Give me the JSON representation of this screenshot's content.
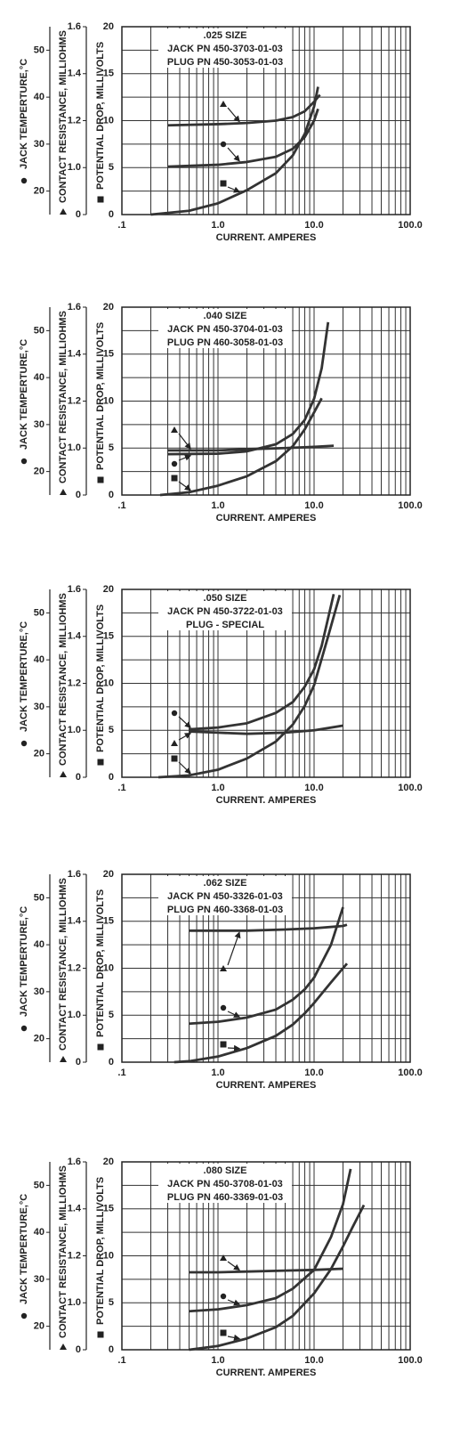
{
  "chart_data": [
    {
      "type": "line",
      "annotation": [
        ".025 SIZE",
        "JACK PN 450-3703-01-03",
        "PLUG PN 450-3053-01-03"
      ],
      "x_label": "CURRENT. AMPERES",
      "y_label": "POTENTIAL DROP, MILLIVOLTS",
      "y2_label": "CONTACT RESISTANCE, MILLIOHMS",
      "y3_label": "JACK TEMPERTURE,°C",
      "xscale": "log",
      "xlim": [
        0.1,
        100
      ],
      "xticks": [
        {
          "value": 0.1,
          "label": ".1"
        },
        {
          "value": 1,
          "label": "1.0"
        },
        {
          "value": 10,
          "label": "10.0"
        },
        {
          "value": 100,
          "label": "100.0"
        }
      ],
      "xminorticks": [
        0.2,
        0.3,
        0.4,
        0.5,
        0.6,
        0.7,
        0.8,
        0.9,
        2,
        3,
        4,
        5,
        6,
        7,
        8,
        9,
        20,
        30,
        40,
        50,
        60,
        70,
        80,
        90
      ],
      "ylim": [
        0,
        20
      ],
      "yticks": [
        0,
        5,
        10,
        15,
        20
      ],
      "yminorticks": [
        2.5,
        7.5,
        12.5,
        17.5
      ],
      "y2lim": [
        0,
        1.6
      ],
      "y2break": [
        0,
        0.8
      ],
      "y2ticks": [
        0,
        {
          "value": 1,
          "label": "1.0"
        },
        1.2,
        1.4,
        1.6
      ],
      "y3lim": [
        15,
        55
      ],
      "y3ticks": [
        20,
        30,
        40,
        50
      ],
      "grid": true,
      "series": [
        {
          "axis": "y2",
          "marker": "triangle",
          "color": "#333333",
          "x": [
            0.3,
            1,
            2,
            4,
            6,
            8,
            10,
            11.5
          ],
          "values": [
            1.18,
            1.185,
            1.19,
            1.2,
            1.215,
            1.24,
            1.28,
            1.31
          ]
        },
        {
          "axis": "y3",
          "marker": "circle",
          "color": "#333333",
          "x": [
            0.3,
            1,
            2,
            4,
            6,
            8,
            10,
            11
          ],
          "values": [
            25.2,
            25.6,
            26.2,
            27.3,
            29,
            31.5,
            35,
            37.5
          ]
        },
        {
          "axis": "y",
          "marker": "square",
          "color": "#333333",
          "x": [
            0.2,
            0.5,
            1,
            2,
            4,
            6,
            8,
            10,
            11
          ],
          "values": [
            0,
            0.4,
            1.2,
            2.6,
            4.4,
            6.3,
            8.6,
            11.5,
            13.6
          ]
        }
      ]
    },
    {
      "type": "line",
      "annotation": [
        ".040 SIZE",
        "JACK PN 450-3704-01-03",
        "PLUG PN 460-3058-01-03"
      ],
      "x_label": "CURRENT. AMPERES",
      "y_label": "POTENTIAL DROP, MILLIVOLTS",
      "y2_label": "CONTACT RESISTANCE, MILLIOHMS",
      "y3_label": "JACK TEMPERTURE,°C",
      "xscale": "log",
      "xlim": [
        0.1,
        100
      ],
      "xticks": [
        {
          "value": 0.1,
          "label": ".1"
        },
        {
          "value": 1,
          "label": "1.0"
        },
        {
          "value": 10,
          "label": "10.0"
        },
        {
          "value": 100,
          "label": "100.0"
        }
      ],
      "xminorticks": [
        0.2,
        0.3,
        0.4,
        0.5,
        0.6,
        0.7,
        0.8,
        0.9,
        2,
        3,
        4,
        5,
        6,
        7,
        8,
        9,
        20,
        30,
        40,
        50,
        60,
        70,
        80,
        90
      ],
      "ylim": [
        0,
        20
      ],
      "yticks": [
        0,
        5,
        10,
        15,
        20
      ],
      "yminorticks": [
        2.5,
        7.5,
        12.5,
        17.5
      ],
      "y2lim": [
        0,
        1.6
      ],
      "y2break": [
        0,
        0.8
      ],
      "y2ticks": [
        0,
        {
          "value": 1,
          "label": "1.0"
        },
        1.2,
        1.4,
        1.6
      ],
      "y3lim": [
        15,
        55
      ],
      "y3ticks": [
        20,
        30,
        40,
        50
      ],
      "grid": true,
      "series": [
        {
          "axis": "y2",
          "marker": "triangle",
          "color": "#333333",
          "x": [
            0.3,
            1,
            2,
            5,
            10,
            16
          ],
          "values": [
            0.99,
            0.99,
            0.995,
            1.0,
            1.005,
            1.01
          ]
        },
        {
          "axis": "y3",
          "marker": "circle",
          "color": "#333333",
          "x": [
            0.3,
            1,
            2,
            4,
            6,
            8,
            10,
            12,
            14
          ],
          "values": [
            23.7,
            23.8,
            24.3,
            25.8,
            28,
            31,
            35.5,
            42,
            51.8
          ]
        },
        {
          "axis": "y",
          "marker": "square",
          "color": "#333333",
          "x": [
            0.25,
            0.5,
            1,
            2,
            4,
            6,
            8,
            10,
            12
          ],
          "values": [
            0,
            0.3,
            1,
            2,
            3.6,
            5.2,
            7,
            8.8,
            10.3
          ]
        }
      ]
    },
    {
      "type": "line",
      "annotation": [
        ".050 SIZE",
        "JACK PN 450-3722-01-03",
        "PLUG - SPECIAL"
      ],
      "x_label": "CURRENT. AMPERES",
      "y_label": "POTENTIAL DROP, MILLIVOLTS",
      "y2_label": "CONTACT RESISTANCE, MILLIOHMS",
      "y3_label": "JACK TEMPERTURE,°C",
      "xscale": "log",
      "xlim": [
        0.1,
        100
      ],
      "xticks": [
        {
          "value": 0.1,
          "label": ".1"
        },
        {
          "value": 1,
          "label": "1.0"
        },
        {
          "value": 10,
          "label": "10.0"
        },
        {
          "value": 100,
          "label": "100.0"
        }
      ],
      "xminorticks": [
        0.2,
        0.3,
        0.4,
        0.5,
        0.6,
        0.7,
        0.8,
        0.9,
        2,
        3,
        4,
        5,
        6,
        7,
        8,
        9,
        20,
        30,
        40,
        50,
        60,
        70,
        80,
        90
      ],
      "ylim": [
        0,
        20
      ],
      "yticks": [
        0,
        5,
        10,
        15,
        20
      ],
      "yminorticks": [
        2.5,
        7.5,
        12.5,
        17.5
      ],
      "y2lim": [
        0,
        1.6
      ],
      "y2break": [
        0,
        0.8
      ],
      "y2ticks": [
        0,
        {
          "value": 1,
          "label": "1.0"
        },
        1.2,
        1.4,
        1.6
      ],
      "y3lim": [
        15,
        55
      ],
      "y3ticks": [
        20,
        30,
        40,
        50
      ],
      "grid": true,
      "series": [
        {
          "axis": "y3",
          "marker": "circle",
          "color": "#333333",
          "x": [
            0.5,
            1,
            2,
            4,
            6,
            8,
            10,
            12,
            16
          ],
          "values": [
            25.2,
            25.6,
            26.5,
            28.7,
            31,
            34.3,
            38,
            43,
            54
          ]
        },
        {
          "axis": "y2",
          "marker": "triangle",
          "color": "#333333",
          "x": [
            0.5,
            1,
            2,
            5,
            10,
            20
          ],
          "values": [
            0.995,
            0.99,
            0.985,
            0.99,
            1.0,
            1.02
          ]
        },
        {
          "axis": "y",
          "marker": "square",
          "color": "#333333",
          "x": [
            0.24,
            0.5,
            1,
            2,
            4,
            6,
            8,
            10,
            14,
            18.5
          ],
          "values": [
            0,
            0.2,
            0.8,
            2.0,
            3.8,
            5.6,
            7.6,
            9.8,
            15,
            19.4
          ]
        }
      ]
    },
    {
      "type": "line",
      "annotation": [
        ".062 SIZE",
        "JACK PN 450-3326-01-03",
        "PLUG PN 460-3368-01-03"
      ],
      "x_label": "CURRENT. AMPERES",
      "y_label": "POTENTIAL DROP, MILLIVOLTS",
      "y2_label": "CONTACT RESISTANCE, MILLIOHMS",
      "y3_label": "JACK TEMPERTURE,°C",
      "xscale": "log",
      "xlim": [
        0.1,
        100
      ],
      "xticks": [
        {
          "value": 0.1,
          "label": ".1"
        },
        {
          "value": 1,
          "label": "1.0"
        },
        {
          "value": 10,
          "label": "10.0"
        },
        {
          "value": 100,
          "label": "100.0"
        }
      ],
      "xminorticks": [
        0.2,
        0.3,
        0.4,
        0.5,
        0.6,
        0.7,
        0.8,
        0.9,
        2,
        3,
        4,
        5,
        6,
        7,
        8,
        9,
        20,
        30,
        40,
        50,
        60,
        70,
        80,
        90
      ],
      "ylim": [
        0,
        20
      ],
      "yticks": [
        0,
        5,
        10,
        15,
        20
      ],
      "yminorticks": [
        2.5,
        7.5,
        12.5,
        17.5
      ],
      "y2lim": [
        0,
        1.6
      ],
      "y2break": [
        0,
        0.8
      ],
      "y2ticks": [
        0,
        {
          "value": 1,
          "label": "1.0"
        },
        1.2,
        1.4,
        1.6
      ],
      "y3lim": [
        15,
        55
      ],
      "y3ticks": [
        20,
        30,
        40,
        50
      ],
      "grid": true,
      "series": [
        {
          "axis": "y2",
          "marker": "triangle",
          "color": "#333333",
          "x": [
            0.5,
            1,
            2,
            5,
            10,
            20,
            22
          ],
          "values": [
            1.36,
            1.36,
            1.36,
            1.365,
            1.37,
            1.38,
            1.385
          ]
        },
        {
          "axis": "y3",
          "marker": "circle",
          "color": "#333333",
          "x": [
            0.5,
            1,
            2,
            4,
            6,
            8,
            10,
            15,
            20
          ],
          "values": [
            23.2,
            23.6,
            24.5,
            26.2,
            28.3,
            30.5,
            33,
            40,
            48
          ]
        },
        {
          "axis": "y",
          "marker": "square",
          "color": "#333333",
          "x": [
            0.35,
            0.5,
            1,
            2,
            4,
            6,
            8,
            10,
            15,
            22
          ],
          "values": [
            0,
            0.1,
            0.6,
            1.5,
            2.8,
            4.0,
            5.2,
            6.3,
            8.5,
            10.5
          ]
        }
      ]
    },
    {
      "type": "line",
      "annotation": [
        ".080 SIZE",
        "JACK PN 450-3708-01-03",
        "PLUG PN 460-3369-01-03"
      ],
      "x_label": "CURRENT. AMPERES",
      "y_label": "POTENTIAL DROP, MILLIVOLTS",
      "y2_label": "CONTACT RESISTANCE, MILLIOHMS",
      "y3_label": "JACK TEMPERTURE,°C",
      "xscale": "log",
      "xlim": [
        0.1,
        100
      ],
      "xticks": [
        {
          "value": 0.1,
          "label": ".1"
        },
        {
          "value": 1,
          "label": "1.0"
        },
        {
          "value": 10,
          "label": "10.0"
        },
        {
          "value": 100,
          "label": "100.0"
        }
      ],
      "xminorticks": [
        0.2,
        0.3,
        0.4,
        0.5,
        0.6,
        0.7,
        0.8,
        0.9,
        2,
        3,
        4,
        5,
        6,
        7,
        8,
        9,
        20,
        30,
        40,
        50,
        60,
        70,
        80,
        90
      ],
      "ylim": [
        0,
        20
      ],
      "yticks": [
        0,
        5,
        10,
        15,
        20
      ],
      "yminorticks": [
        2.5,
        7.5,
        12.5,
        17.5
      ],
      "y2lim": [
        0,
        1.6
      ],
      "y2break": [
        0,
        0.8
      ],
      "y2ticks": [
        0,
        {
          "value": 1,
          "label": "1.0"
        },
        1.2,
        1.4,
        1.6
      ],
      "y3lim": [
        15,
        55
      ],
      "y3ticks": [
        20,
        30,
        40,
        50
      ],
      "grid": true,
      "series": [
        {
          "axis": "y2",
          "marker": "triangle",
          "color": "#333333",
          "x": [
            0.5,
            1,
            2,
            5,
            10,
            20
          ],
          "values": [
            1.13,
            1.13,
            1.133,
            1.137,
            1.14,
            1.145
          ]
        },
        {
          "axis": "y3",
          "marker": "circle",
          "color": "#333333",
          "x": [
            0.5,
            1,
            2,
            4,
            6,
            10,
            15,
            20,
            24
          ],
          "values": [
            23.2,
            23.6,
            24.5,
            26,
            28,
            32,
            39,
            46,
            53.5
          ]
        },
        {
          "axis": "y",
          "marker": "square",
          "color": "#333333",
          "x": [
            0.5,
            1,
            2,
            4,
            6,
            10,
            15,
            20,
            25,
            33
          ],
          "values": [
            0,
            0.4,
            1.2,
            2.4,
            3.6,
            6,
            8.6,
            11,
            13,
            15.4
          ]
        }
      ]
    }
  ]
}
